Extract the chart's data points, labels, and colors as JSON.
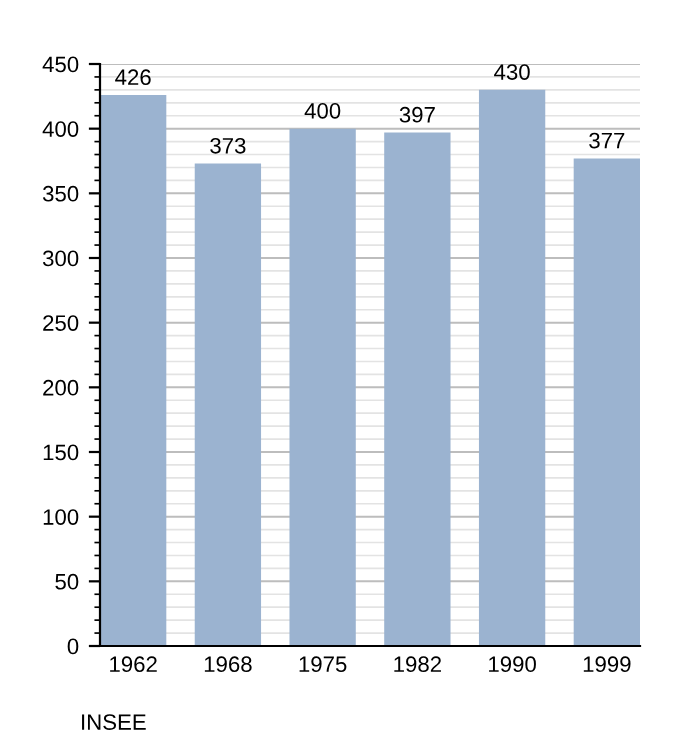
{
  "chart_data": {
    "type": "bar",
    "categories": [
      "1962",
      "1968",
      "1975",
      "1982",
      "1990",
      "1999"
    ],
    "values": [
      426,
      373,
      400,
      397,
      430,
      377
    ],
    "color": "#9bb3d0",
    "ylim": [
      0,
      450
    ],
    "yticks": [
      0,
      50,
      100,
      150,
      200,
      250,
      300,
      350,
      400,
      450
    ],
    "grid": "y",
    "data_labels": true,
    "annotations": [
      "INSEE"
    ]
  }
}
